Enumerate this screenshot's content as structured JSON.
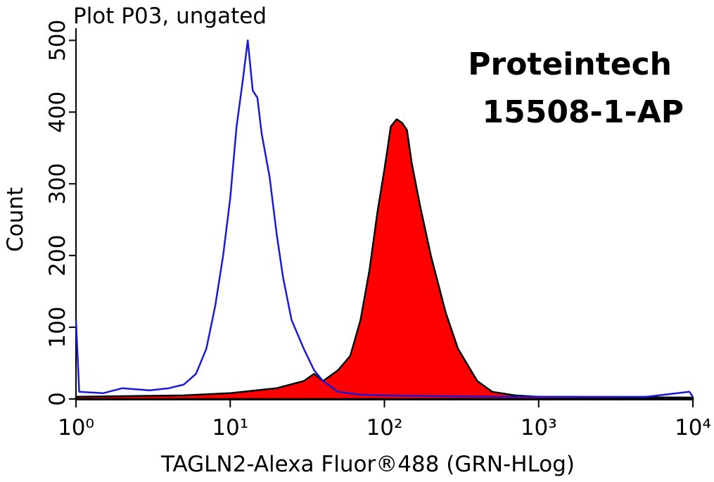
{
  "chart_data": {
    "type": "line",
    "title": "Plot P03, ungated",
    "x_label": "TAGLN2-Alexa Fluor®488 (GRN-HLog)",
    "y_label": "Count",
    "annotations": [
      "Proteintech",
      "15508-1-AP"
    ],
    "log_x": true,
    "xlim": [
      1,
      10000
    ],
    "xticks": [
      {
        "value": 1,
        "label": "10⁰"
      },
      {
        "value": 10,
        "label": "10¹"
      },
      {
        "value": 100,
        "label": "10²"
      },
      {
        "value": 1000,
        "label": "10³"
      },
      {
        "value": 10000,
        "label": "10⁴"
      }
    ],
    "ylim": [
      0,
      520
    ],
    "yticks": [
      0,
      100,
      200,
      300,
      400,
      500
    ],
    "series": [
      {
        "color": "#000000",
        "fill": "#ff0000",
        "x": [
          1,
          5,
          10,
          20,
          30,
          35,
          40,
          50,
          60,
          70,
          80,
          90,
          100,
          110,
          120,
          130,
          140,
          150,
          170,
          200,
          250,
          300,
          400,
          500,
          700,
          1000,
          10000
        ],
        "values": [
          3,
          5,
          8,
          15,
          25,
          35,
          25,
          40,
          60,
          110,
          180,
          260,
          320,
          380,
          390,
          385,
          375,
          330,
          270,
          200,
          120,
          70,
          25,
          10,
          5,
          3,
          2
        ]
      },
      {
        "color": "#1a1ad6",
        "x": [
          1,
          1.05,
          1.5,
          2,
          3,
          4,
          5,
          6,
          7,
          8,
          9,
          10,
          11,
          12,
          13,
          14,
          15,
          16,
          18,
          20,
          22,
          25,
          30,
          35,
          40,
          50,
          70,
          100,
          200,
          500,
          1000,
          5000,
          9500,
          10000
        ],
        "values": [
          110,
          10,
          8,
          15,
          12,
          15,
          20,
          35,
          70,
          130,
          200,
          280,
          380,
          440,
          500,
          430,
          420,
          370,
          310,
          230,
          170,
          110,
          70,
          40,
          25,
          10,
          6,
          5,
          4,
          3,
          3,
          3,
          10,
          3
        ]
      }
    ]
  }
}
